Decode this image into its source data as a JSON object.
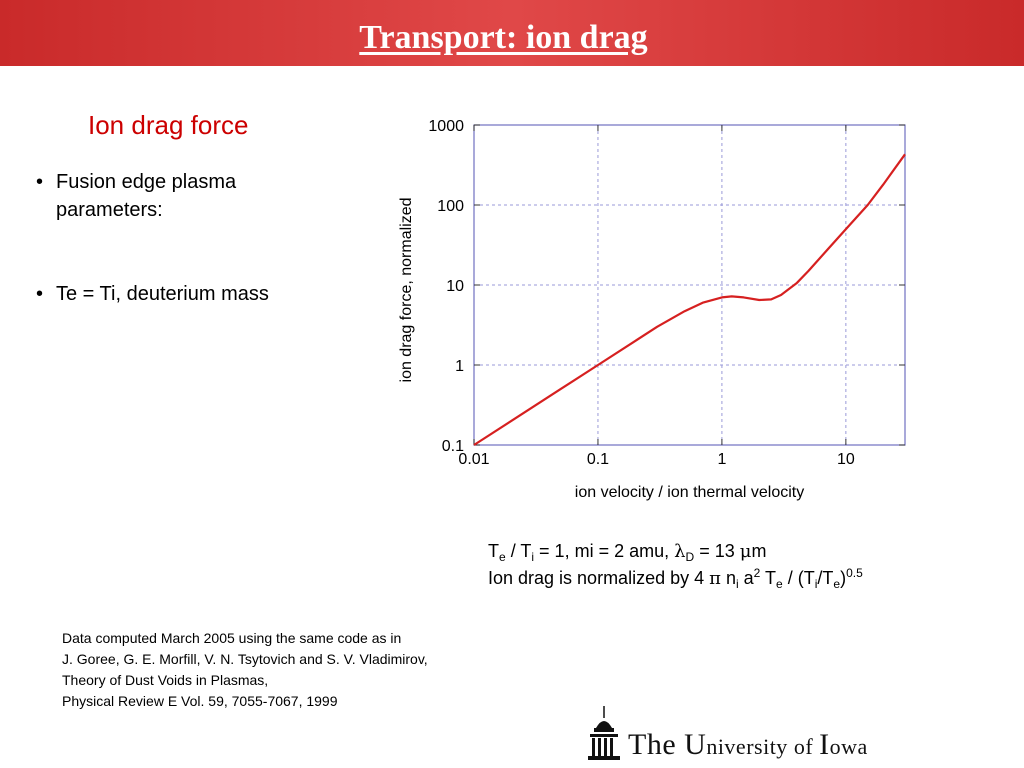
{
  "slide": {
    "title": "Transport: ion drag",
    "section_heading": "Ion drag force",
    "bullets": [
      "Fusion edge plasma parameters:",
      "Te = Ti, deuterium mass"
    ]
  },
  "params": {
    "te": "T",
    "te_sub": "e",
    "slash": " / T",
    "ti_sub": "i",
    "line1_rest": " = 1, mi = 2 amu, ",
    "lambda": "λ",
    "lambda_sub": "D",
    "lambda_value": " = 13 ",
    "mu": "μ",
    "m": "m",
    "line2_a": "Ion drag is normalized by 4 ",
    "pi": "π",
    "line2_b": " n",
    "ni_sub": "i",
    "line2_c": " a",
    "a_sup": "2",
    "line2_d": " T",
    "te2_sub": "e",
    "line2_e": " / (T",
    "ti2_sub": "i",
    "line2_f": "/T",
    "te3_sub": "e",
    "line2_g": ")",
    "exp_sup": "0.5"
  },
  "citation": [
    "Data computed March 2005 using the same code as in",
    "J. Goree, G. E. Morfill, V. N. Tsytovich and S. V. Vladimirov,",
    "Theory of Dust Voids in Plasmas,",
    "Physical Review E Vol. 59, 7055-7067, 1999"
  ],
  "logo": {
    "text_the": "The ",
    "u": "U",
    "niversity": "niversity ",
    "of": "of ",
    "i": "I",
    "owa": "owa",
    "icon": "old-capitol-icon"
  },
  "chart_data": {
    "type": "line",
    "x_scale": "log",
    "y_scale": "log",
    "xlim": [
      0.01,
      30
    ],
    "ylim": [
      0.1,
      1000
    ],
    "xticks": [
      0.01,
      0.1,
      1,
      10
    ],
    "yticks": [
      0.1,
      1,
      10,
      100,
      1000
    ],
    "xtick_labels": [
      "0.01",
      "0.1",
      "1",
      "10"
    ],
    "ytick_labels": [
      "0.1",
      "1",
      "10",
      "100",
      "1000"
    ],
    "xlabel": "ion velocity / ion thermal velocity",
    "ylabel": "ion drag force, normalized",
    "grid": true,
    "line_color": "#d62020",
    "grid_color": "#9a9ad8",
    "series": [
      {
        "x": [
          0.01,
          0.02,
          0.05,
          0.1,
          0.2,
          0.3,
          0.5,
          0.7,
          1.0,
          1.2,
          1.5,
          2.0,
          2.5,
          3.0,
          4.0,
          5.0,
          7.0,
          10.0,
          15.0,
          20.0,
          30.0
        ],
        "y": [
          0.1,
          0.2,
          0.5,
          1.0,
          2.0,
          3.0,
          4.7,
          6.0,
          7.0,
          7.2,
          7.0,
          6.5,
          6.6,
          7.5,
          10.5,
          15.0,
          27.0,
          50.0,
          100.0,
          180.0,
          430.0
        ]
      }
    ]
  }
}
